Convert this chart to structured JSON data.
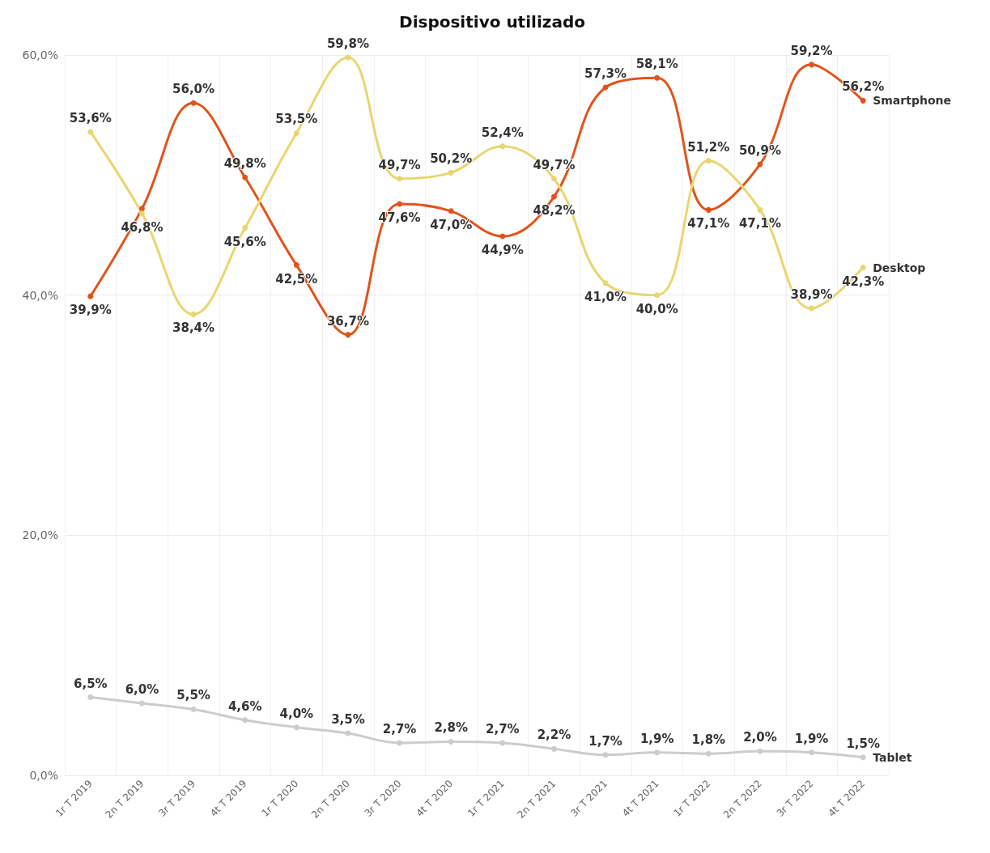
{
  "chart_data": {
    "type": "line",
    "title": "Dispositivo utilizado",
    "categories": [
      "1r T 2019",
      "2n T 2019",
      "3r T 2019",
      "4t T 2019",
      "1r T 2020",
      "2n T 2020",
      "3r T 2020",
      "4t T 2020",
      "1r T 2021",
      "2n T 2021",
      "3r T 2021",
      "4t T 2021",
      "1r T 2022",
      "2n T 2022",
      "3r T 2022",
      "4t T 2022"
    ],
    "series": [
      {
        "name": "Smartphone",
        "color": "#e0541c",
        "values": [
          39.9,
          47.2,
          56.0,
          49.8,
          42.5,
          36.7,
          47.6,
          47.0,
          44.9,
          48.2,
          57.3,
          58.1,
          47.1,
          50.9,
          59.2,
          56.2
        ],
        "value_labels": [
          "39,9%",
          null,
          "56,0%",
          "49,8%",
          "42,5%",
          "36,7%",
          "47,6%",
          "47,0%",
          "44,9%",
          "48,2%",
          "57,3%",
          "58,1%",
          "47,1%",
          "50,9%",
          "59,2%",
          "56,2%"
        ]
      },
      {
        "name": "Desktop",
        "color": "#e8d66f",
        "values": [
          53.6,
          46.8,
          38.4,
          45.6,
          53.5,
          59.8,
          49.7,
          50.2,
          52.4,
          49.7,
          41.0,
          40.0,
          51.2,
          47.1,
          38.9,
          42.3
        ],
        "value_labels": [
          "53,6%",
          "46,8%",
          "38,4%",
          "45,6%",
          "53,5%",
          "59,8%",
          "49,7%",
          "50,2%",
          "52,4%",
          "49,7%",
          "41,0%",
          "40,0%",
          "51,2%",
          "47,1%",
          "38,9%",
          "42,3%"
        ]
      },
      {
        "name": "Tablet",
        "color": "#cccccc",
        "values": [
          6.5,
          6.0,
          5.5,
          4.6,
          4.0,
          3.5,
          2.7,
          2.8,
          2.7,
          2.2,
          1.7,
          1.9,
          1.8,
          2.0,
          1.9,
          1.5
        ],
        "value_labels": [
          "6,5%",
          "6,0%",
          "5,5%",
          "4,6%",
          "4,0%",
          "3,5%",
          "2,7%",
          "2,8%",
          "2,7%",
          "2,2%",
          "1,7%",
          "1,9%",
          "1,8%",
          "2,0%",
          "1,9%",
          "1,5%"
        ]
      }
    ],
    "ylim": [
      0,
      60
    ],
    "yticks": [
      {
        "value": 0,
        "label": "0,0%"
      },
      {
        "value": 20,
        "label": "20,0%"
      },
      {
        "value": 40,
        "label": "40,0%"
      },
      {
        "value": 60,
        "label": "60,0%"
      }
    ],
    "grid": true,
    "legend": false,
    "marker": "circle",
    "line_style": "solid"
  }
}
